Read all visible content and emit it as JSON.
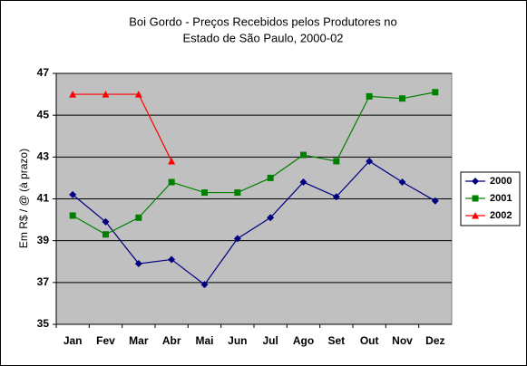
{
  "chart_data": {
    "type": "line",
    "title": "Boi Gordo - Preços Recebidos pelos Produtores no",
    "subtitle": "Estado de São Paulo, 2000-02",
    "y_label": "Em R$ / @ (à prazo)",
    "categories": [
      "Jan",
      "Fev",
      "Mar",
      "Abr",
      "Mai",
      "Jun",
      "Jul",
      "Ago",
      "Set",
      "Out",
      "Nov",
      "Dez"
    ],
    "series": [
      {
        "name": "2000",
        "color": "#000080",
        "marker": "diamond",
        "values": [
          41.2,
          39.9,
          37.9,
          38.1,
          36.9,
          39.1,
          40.1,
          41.8,
          41.1,
          42.8,
          41.8,
          40.9
        ]
      },
      {
        "name": "2001",
        "color": "#008000",
        "marker": "square",
        "values": [
          40.2,
          39.3,
          40.1,
          41.8,
          41.3,
          41.3,
          42.0,
          43.1,
          42.8,
          45.9,
          45.8,
          46.1
        ]
      },
      {
        "name": "2002",
        "color": "#ff0000",
        "marker": "triangle",
        "values": [
          46.0,
          46.0,
          46.0,
          42.8,
          null,
          null,
          null,
          null,
          null,
          null,
          null,
          null
        ]
      }
    ],
    "ylim": [
      35,
      47
    ],
    "yticks": [
      35,
      37,
      39,
      41,
      43,
      45,
      47
    ],
    "grid": true,
    "legend": "right"
  }
}
